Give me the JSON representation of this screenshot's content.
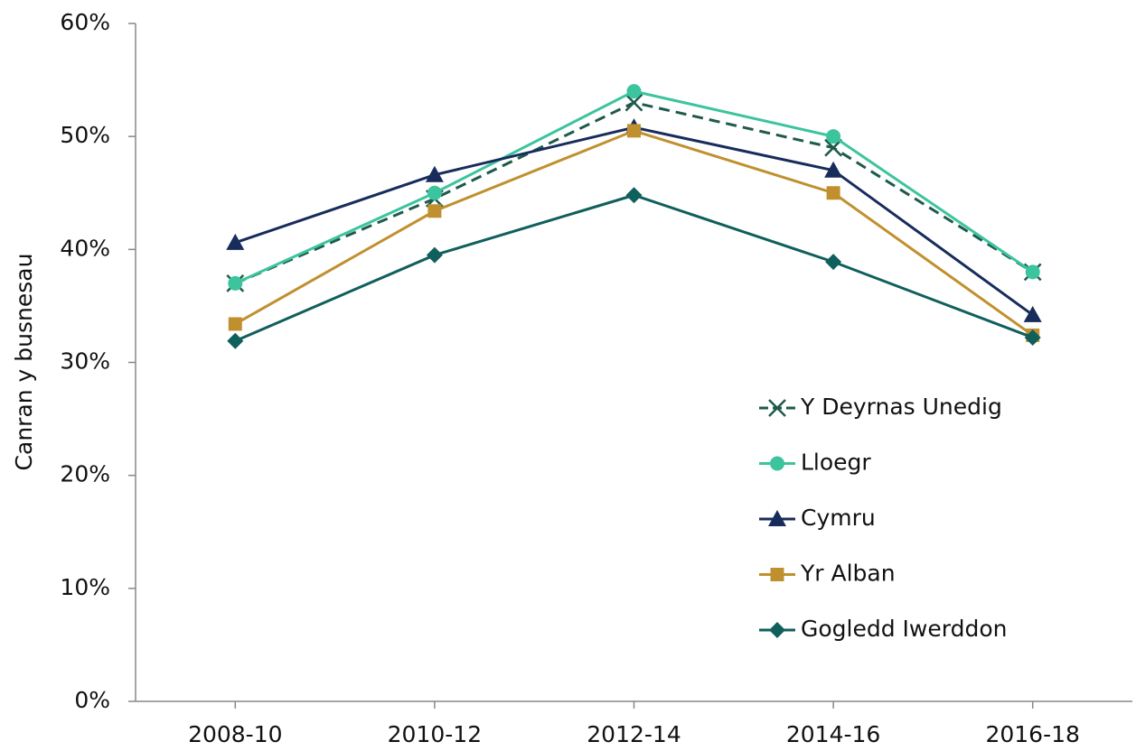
{
  "chart_data": {
    "type": "line",
    "y_label": "Canran y busnesau",
    "categories": [
      "2008-10",
      "2010-12",
      "2012-14",
      "2014-16",
      "2016-18"
    ],
    "series": [
      {
        "name": "Y Deyrnas Unedig",
        "color": "#1f5a4c",
        "marker": "x",
        "dashed": true,
        "values": [
          37,
          44.5,
          53,
          49,
          38
        ]
      },
      {
        "name": "Lloegr",
        "color": "#3cc49e",
        "marker": "circle",
        "dashed": false,
        "values": [
          37,
          45,
          54,
          50,
          38
        ]
      },
      {
        "name": "Cymru",
        "color": "#182c5c",
        "marker": "triangle",
        "dashed": false,
        "values": [
          40.6,
          46.6,
          50.8,
          47,
          34.2
        ]
      },
      {
        "name": "Yr Alban",
        "color": "#c0902e",
        "marker": "square",
        "dashed": false,
        "values": [
          33.4,
          43.4,
          50.5,
          45,
          32.4
        ]
      },
      {
        "name": "Gogledd Iwerddon",
        "color": "#0f5f5c",
        "marker": "diamond",
        "dashed": false,
        "values": [
          31.9,
          39.5,
          44.8,
          38.9,
          32.2
        ]
      }
    ],
    "ylim": [
      0,
      60
    ],
    "yticks": [
      {
        "value": 0,
        "label": "0%"
      },
      {
        "value": 10,
        "label": "10%"
      },
      {
        "value": 20,
        "label": "20%"
      },
      {
        "value": 30,
        "label": "30%"
      },
      {
        "value": 40,
        "label": "40%"
      },
      {
        "value": 50,
        "label": "50%"
      },
      {
        "value": 60,
        "label": "60%"
      }
    ],
    "grid": false,
    "legend": "right"
  }
}
